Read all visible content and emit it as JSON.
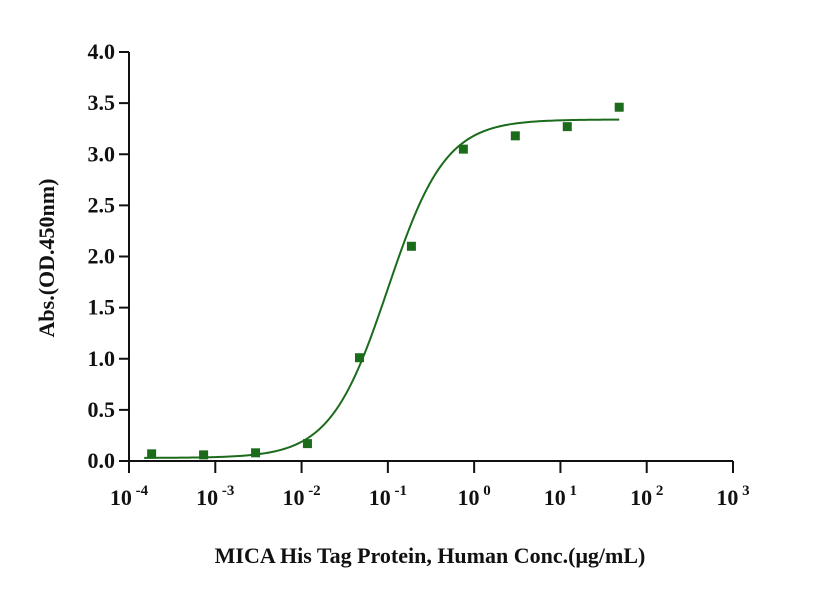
{
  "chart_data": {
    "type": "scatter",
    "xscale": "log",
    "xlabel": "MICA His Tag Protein, Human Conc.(μg/mL)",
    "ylabel": "Abs.(OD.450nm)",
    "xlim": [
      0.0001,
      1000
    ],
    "ylim": [
      0,
      4
    ],
    "grid": false,
    "x_ticks": [
      {
        "base": "10",
        "exp": "-4"
      },
      {
        "base": "10",
        "exp": "-3"
      },
      {
        "base": "10",
        "exp": "-2"
      },
      {
        "base": "10",
        "exp": "-1"
      },
      {
        "base": "10",
        "exp": "0"
      },
      {
        "base": "10",
        "exp": "1"
      },
      {
        "base": "10",
        "exp": "2"
      },
      {
        "base": "10",
        "exp": "3"
      }
    ],
    "y_ticks": [
      "0.0",
      "0.5",
      "1.0",
      "1.5",
      "2.0",
      "2.5",
      "3.0",
      "3.5",
      "4.0"
    ],
    "series": [
      {
        "name": "MICA His Tag Protein, Human",
        "marker": "square",
        "color": "#1b6b1b",
        "points": [
          {
            "x": 0.000183,
            "y": 0.07
          },
          {
            "x": 0.000732,
            "y": 0.06
          },
          {
            "x": 0.00293,
            "y": 0.08
          },
          {
            "x": 0.0117,
            "y": 0.17
          },
          {
            "x": 0.0469,
            "y": 1.01
          },
          {
            "x": 0.1875,
            "y": 2.1
          },
          {
            "x": 0.75,
            "y": 3.05
          },
          {
            "x": 3.0,
            "y": 3.18
          },
          {
            "x": 12.0,
            "y": 3.27
          },
          {
            "x": 48.0,
            "y": 3.46
          }
        ],
        "fit": {
          "model": "4PL",
          "bottom": 0.03,
          "top": 3.34,
          "ec50": 0.1,
          "hill": 1.3,
          "x_range": [
            0.00015,
            48
          ]
        }
      }
    ]
  }
}
